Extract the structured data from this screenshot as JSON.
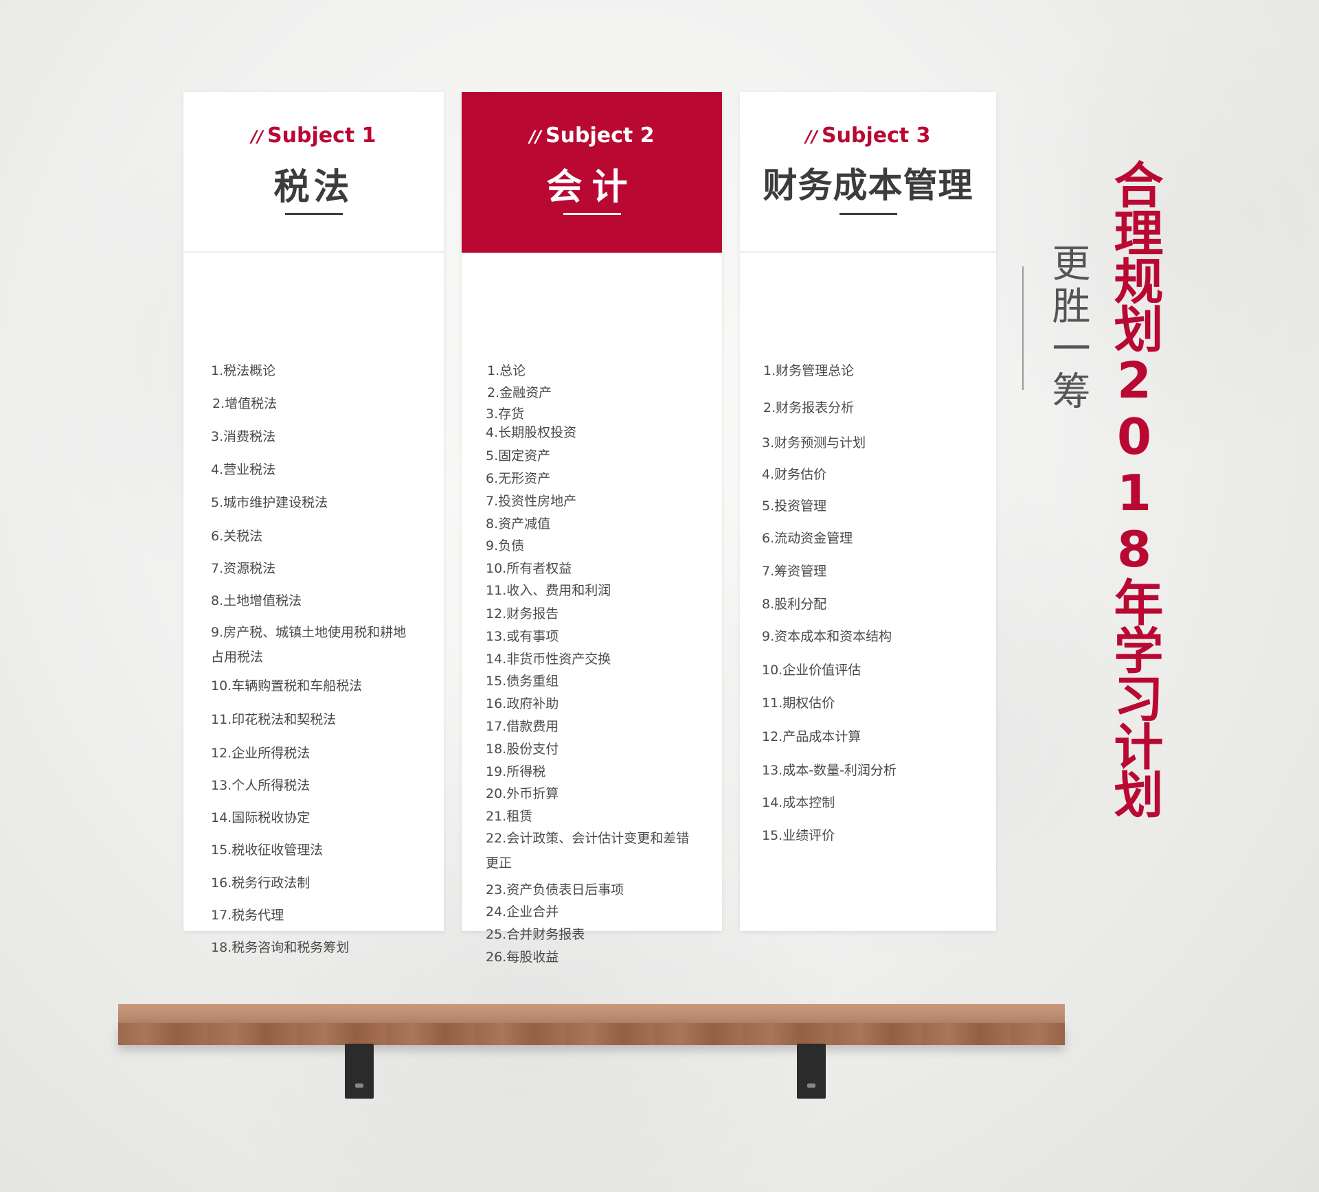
{
  "heading": {
    "vertical_title": "合理规划2018年学习计划",
    "vertical_slogan": "更胜一筹"
  },
  "colors": {
    "accent": "#b90932",
    "text": "#4a4a4a",
    "title": "#3c3c3c"
  },
  "panels": [
    {
      "subject": "Subject 1",
      "slashes": "//",
      "title": "税法",
      "topics": [
        "1.税法概论",
        "2.增值税法",
        "3.消费税法",
        "4.营业税法",
        "5.城市维护建设税法",
        "6.关税法",
        "7.资源税法",
        "8.土地增值税法",
        "9.房产税、城镇土地使用税和耕地占用税法",
        "10.车辆购置税和车船税法",
        "11.印花税法和契税法",
        "12.企业所得税法",
        "13.个人所得税法",
        "14.国际税收协定",
        "15.税收征收管理法",
        "16.税务行政法制",
        "17.税务代理",
        "18.税务咨询和税务筹划"
      ]
    },
    {
      "subject": "Subject 2",
      "slashes": "//",
      "title": "会计",
      "topics": [
        "1.总论",
        "2.金融资产",
        "3.存货",
        "4.长期股权投资",
        "5.固定资产",
        "6.无形资产",
        "7.投资性房地产",
        "8.资产减值",
        "9.负债",
        "10.所有者权益",
        "11.收入、费用和利润",
        "12.财务报告",
        "13.或有事项",
        "14.非货币性资产交换",
        "15.债务重组",
        "16.政府补助",
        "17.借款费用",
        "18.股份支付",
        "19.所得税",
        "20.外币折算",
        "21.租赁",
        "22.会计政策、会计估计变更和差错更正",
        "23.资产负债表日后事项",
        "24.企业合并",
        "25.合并财务报表",
        "26.每股收益"
      ]
    },
    {
      "subject": "Subject 3",
      "slashes": "//",
      "title": "财务成本管理",
      "topics": [
        "1.财务管理总论",
        "2.财务报表分析",
        "3.财务预测与计划",
        "4.财务估价",
        "5.投资管理",
        "6.流动资金管理",
        "7.筹资管理",
        "8.股利分配",
        "9.资本成本和资本结构",
        "10.企业价值评估",
        "11.期权估价",
        "12.产品成本计算",
        "13.成本-数量-利润分析",
        "14.成本控制",
        "15.业绩评价"
      ]
    }
  ]
}
